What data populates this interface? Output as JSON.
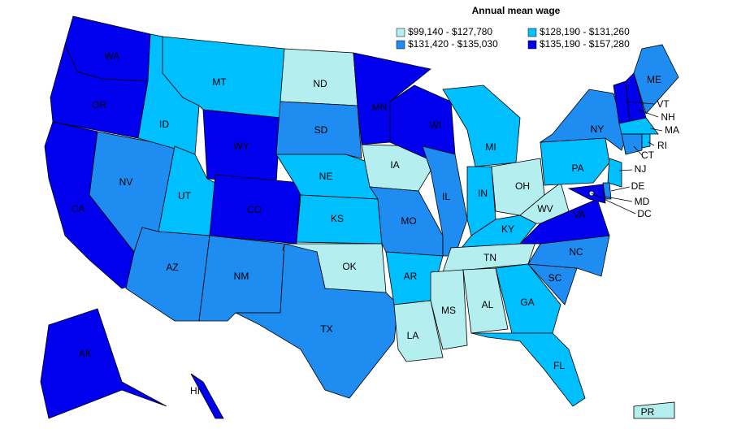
{
  "title": "Annual mean wage",
  "legend": [
    {
      "label": "$99,140 - $127,780",
      "color": "#b4eeee"
    },
    {
      "label": "$128,190 - $131,260",
      "color": "#00bfff"
    },
    {
      "label": "$131,420 - $135,030",
      "color": "#1e8cf0"
    },
    {
      "label": "$135,190 - $157,280",
      "color": "#0000ee"
    }
  ],
  "states": [
    {
      "label": "WA",
      "bin": 3
    },
    {
      "label": "OR",
      "bin": 3
    },
    {
      "label": "CA",
      "bin": 3
    },
    {
      "label": "NV",
      "bin": 2
    },
    {
      "label": "ID",
      "bin": 1
    },
    {
      "label": "MT",
      "bin": 1
    },
    {
      "label": "WY",
      "bin": 3
    },
    {
      "label": "UT",
      "bin": 1
    },
    {
      "label": "CO",
      "bin": 3
    },
    {
      "label": "AZ",
      "bin": 2
    },
    {
      "label": "NM",
      "bin": 2
    },
    {
      "label": "ND",
      "bin": 0
    },
    {
      "label": "SD",
      "bin": 2
    },
    {
      "label": "NE",
      "bin": 1
    },
    {
      "label": "KS",
      "bin": 1
    },
    {
      "label": "OK",
      "bin": 0
    },
    {
      "label": "TX",
      "bin": 2
    },
    {
      "label": "MN",
      "bin": 3
    },
    {
      "label": "IA",
      "bin": 0
    },
    {
      "label": "MO",
      "bin": 2
    },
    {
      "label": "AR",
      "bin": 1
    },
    {
      "label": "LA",
      "bin": 0
    },
    {
      "label": "WI",
      "bin": 3
    },
    {
      "label": "IL",
      "bin": 2
    },
    {
      "label": "MI",
      "bin": 1
    },
    {
      "label": "IN",
      "bin": 1
    },
    {
      "label": "OH",
      "bin": 0
    },
    {
      "label": "KY",
      "bin": 1
    },
    {
      "label": "TN",
      "bin": 0
    },
    {
      "label": "MS",
      "bin": 0
    },
    {
      "label": "AL",
      "bin": 0
    },
    {
      "label": "GA",
      "bin": 1
    },
    {
      "label": "FL",
      "bin": 1
    },
    {
      "label": "SC",
      "bin": 2
    },
    {
      "label": "NC",
      "bin": 2
    },
    {
      "label": "VA",
      "bin": 3
    },
    {
      "label": "WV",
      "bin": 0
    },
    {
      "label": "PA",
      "bin": 1
    },
    {
      "label": "NY",
      "bin": 2
    },
    {
      "label": "VT",
      "bin": 3
    },
    {
      "label": "NH",
      "bin": 3
    },
    {
      "label": "ME",
      "bin": 2
    },
    {
      "label": "MA",
      "bin": 1
    },
    {
      "label": "CT",
      "bin": 2
    },
    {
      "label": "RI",
      "bin": 1
    },
    {
      "label": "NJ",
      "bin": 1
    },
    {
      "label": "DE",
      "bin": 2
    },
    {
      "label": "MD",
      "bin": 3
    },
    {
      "label": "DC",
      "bin": 0
    },
    {
      "label": "AK",
      "bin": 3
    },
    {
      "label": "HI",
      "bin": 3
    },
    {
      "label": "PR",
      "bin": 0
    }
  ]
}
